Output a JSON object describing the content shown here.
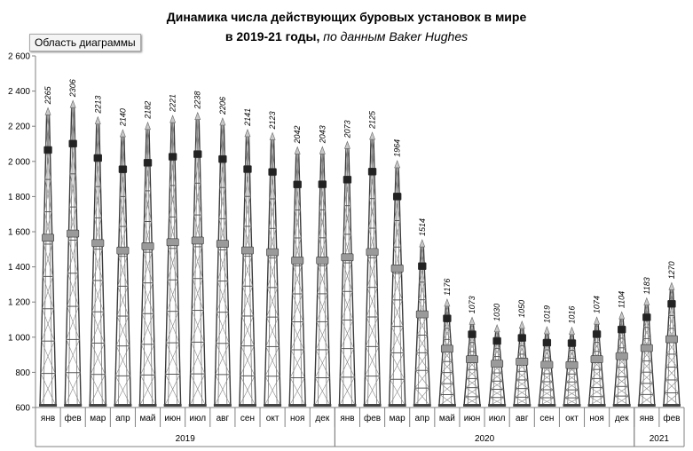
{
  "chart_area_label": "Область диаграммы",
  "chart_data": {
    "type": "bar",
    "title_line1": "Динамика числа действующих буровых установок в мире",
    "title_line2_main": "в 2019-21 годы,",
    "title_line2_source": "по данным Baker Hughes",
    "ylim": [
      600,
      2600
    ],
    "yticks": [
      600,
      800,
      1000,
      1200,
      1400,
      1600,
      1800,
      2000,
      2200,
      2400,
      2600
    ],
    "ytick_labels": [
      "600",
      "800",
      "1 000",
      "1 200",
      "1 400",
      "1 600",
      "1 800",
      "2 000",
      "2 200",
      "2 400",
      "2 600"
    ],
    "categories": [
      "янв",
      "фев",
      "мар",
      "апр",
      "май",
      "июн",
      "июл",
      "авг",
      "сен",
      "окт",
      "ноя",
      "дек",
      "янв",
      "фев",
      "мар",
      "апр",
      "май",
      "июн",
      "июл",
      "авг",
      "сен",
      "окт",
      "ноя",
      "дек",
      "янв",
      "фев"
    ],
    "values": [
      2265,
      2306,
      2213,
      2140,
      2182,
      2221,
      2238,
      2206,
      2141,
      2123,
      2042,
      2043,
      2073,
      2125,
      1964,
      1514,
      1176,
      1073,
      1030,
      1050,
      1019,
      1016,
      1074,
      1104,
      1183,
      1270
    ],
    "value_labels": [
      "2265",
      "2306",
      "2213",
      "2140",
      "2182",
      "2221",
      "2238",
      "2206",
      "2141",
      "2123",
      "2042",
      "2043",
      "2073",
      "2125",
      "1964",
      "1514",
      "1176",
      "1073",
      "1030",
      "1050",
      "1019",
      "1016",
      "1074",
      "1104",
      "1183",
      "1270"
    ],
    "groups": [
      {
        "label": "2019",
        "count": 12
      },
      {
        "label": "2020",
        "count": 12
      },
      {
        "label": "2021",
        "count": 2
      }
    ],
    "bar_style": "drilling-rig tower picture",
    "grid": false
  }
}
